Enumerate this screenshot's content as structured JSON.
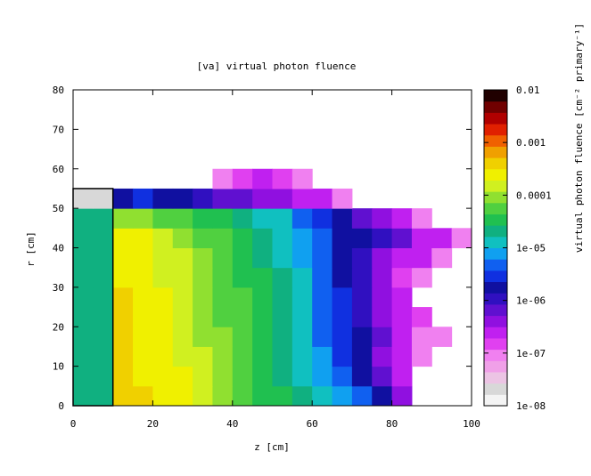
{
  "chart_data": {
    "type": "heatmap",
    "title": "[va] virtual photon fluence",
    "x_label": "z [cm]",
    "y_label": "r [cm]",
    "colorbar_label": "virtual photon fluence [cm⁻² primary⁻¹]",
    "xlim": [
      0,
      100
    ],
    "ylim": [
      0,
      80
    ],
    "xticks": [
      0,
      20,
      40,
      60,
      80,
      100
    ],
    "yticks": [
      0,
      10,
      20,
      30,
      40,
      50,
      60,
      70,
      80
    ],
    "xbins": [
      0,
      5,
      10,
      15,
      20,
      25,
      30,
      35,
      40,
      45,
      50,
      55,
      60,
      65,
      70,
      75,
      80,
      85,
      90,
      95,
      100
    ],
    "ybins": [
      0,
      5,
      10,
      15,
      20,
      25,
      30,
      35,
      40,
      45,
      50,
      55,
      60
    ],
    "colorscale": "log",
    "clim": [
      1e-08,
      0.01
    ],
    "cticks": [
      {
        "value": 1e-08,
        "label": "1e-08"
      },
      {
        "value": 1e-07,
        "label": "1e-07"
      },
      {
        "value": 1e-06,
        "label": "1e-06"
      },
      {
        "value": 1e-05,
        "label": "1e-05"
      },
      0.0001,
      0.001,
      0.01
    ],
    "colormap": [
      "#f4f4f4",
      "#d8d8d8",
      "#ecc4e4",
      "#f0a0e8",
      "#f080f0",
      "#e040f0",
      "#c020f0",
      "#9010e0",
      "#6010d0",
      "#3010c0",
      "#1010a0",
      "#1030e0",
      "#1060f0",
      "#10a0f0",
      "#10c0c0",
      "#10b080",
      "#20c050",
      "#50d040",
      "#90e030",
      "#d0f020",
      "#f0f000",
      "#f0d000",
      "#f0a000",
      "#f06000",
      "#e02000",
      "#b00000",
      "#700000",
      "#200000"
    ],
    "outline": {
      "x": [
        0,
        10
      ],
      "y": [
        0,
        55
      ]
    },
    "values": [
      [
        2e-05,
        2e-05,
        0.0005,
        0.0004,
        0.0003,
        0.0002,
        0.00015,
        0.0001,
        6e-05,
        4e-05,
        3e-05,
        2e-05,
        1.5e-05,
        8e-06,
        4e-06,
        2e-06,
        5e-07,
        null,
        null,
        null
      ],
      [
        2e-05,
        2e-05,
        0.0004,
        0.0003,
        0.00025,
        0.0002,
        0.00013,
        9e-05,
        6e-05,
        4e-05,
        2.5e-05,
        1.5e-05,
        8e-06,
        4e-06,
        2e-06,
        6e-07,
        2e-07,
        null,
        null,
        null
      ],
      [
        2e-05,
        2e-05,
        0.0004,
        0.0003,
        0.00025,
        0.00018,
        0.00012,
        8e-05,
        5e-05,
        3.5e-05,
        2.5e-05,
        1.5e-05,
        8e-06,
        3e-06,
        1.5e-06,
        5e-07,
        3e-07,
        1e-07,
        null,
        null
      ],
      [
        2e-05,
        2e-05,
        0.0004,
        0.0003,
        0.00022,
        0.00016,
        0.00011,
        8e-05,
        5e-05,
        3.5e-05,
        2e-05,
        1.2e-05,
        6e-06,
        3e-06,
        1.5e-06,
        6e-07,
        2e-07,
        1e-07,
        1e-07,
        null
      ],
      [
        2e-05,
        2e-05,
        0.00035,
        0.00028,
        0.0002,
        0.00015,
        0.0001,
        7e-05,
        5e-05,
        3e-05,
        2e-05,
        1.2e-05,
        6e-06,
        3e-06,
        1.2e-06,
        5e-07,
        2e-07,
        1.5e-07,
        null,
        null
      ],
      [
        2e-05,
        2e-05,
        0.00035,
        0.00026,
        0.0002,
        0.00014,
        0.0001,
        7e-05,
        4.5e-05,
        3e-05,
        1.8e-05,
        1e-05,
        6e-06,
        2.5e-06,
        1e-06,
        4e-07,
        2e-07,
        null,
        null,
        null
      ],
      [
        2e-05,
        2e-05,
        0.0003,
        0.00025,
        0.00018,
        0.00013,
        9e-05,
        6e-05,
        4e-05,
        2.8e-05,
        1.8e-05,
        1e-05,
        5e-06,
        2e-06,
        1e-06,
        4e-07,
        1.5e-07,
        1e-07,
        null,
        null
      ],
      [
        2e-05,
        2e-05,
        0.0003,
        0.00022,
        0.00016,
        0.00012,
        8e-05,
        5.5e-05,
        4e-05,
        2.5e-05,
        1.6e-05,
        9e-06,
        5e-06,
        2e-06,
        1e-06,
        5e-07,
        3e-07,
        2e-07,
        1e-07,
        null
      ],
      [
        2e-05,
        2e-05,
        0.00025,
        0.0002,
        0.00015,
        0.0001,
        7e-05,
        5e-05,
        3.5e-05,
        2.2e-05,
        1.4e-05,
        8e-06,
        4e-06,
        2e-06,
        1.5e-06,
        1e-06,
        6e-07,
        3e-07,
        2e-07,
        1e-07
      ],
      [
        2e-05,
        2e-05,
        0.0001,
        8e-05,
        6e-05,
        5e-05,
        4e-05,
        3e-05,
        2e-05,
        1.5e-05,
        1e-05,
        6e-06,
        3e-06,
        1.5e-06,
        8e-07,
        4e-07,
        2e-07,
        1e-07,
        null,
        null
      ],
      [
        2e-08,
        2e-08,
        2e-06,
        3e-06,
        2e-06,
        1.5e-06,
        1e-06,
        8e-07,
        6e-07,
        5e-07,
        4e-07,
        3e-07,
        2e-07,
        1e-07,
        null,
        null,
        null,
        null,
        null,
        null
      ],
      [
        null,
        null,
        null,
        null,
        null,
        null,
        null,
        1e-07,
        1.5e-07,
        2e-07,
        1.5e-07,
        1e-07,
        null,
        null,
        null,
        null,
        null,
        null,
        null,
        null
      ]
    ]
  }
}
